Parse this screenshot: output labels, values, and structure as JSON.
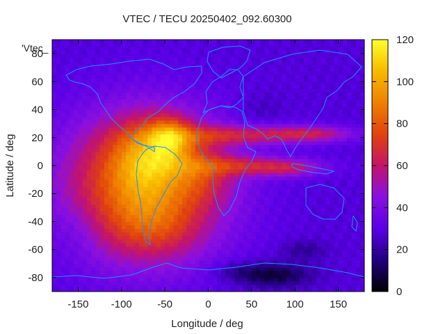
{
  "chart_data": {
    "type": "heatmap",
    "title": "VTEC / TECU 20250402_092.60300",
    "xlabel": "Longitude / deg",
    "ylabel": "Latitude / deg",
    "xlim": [
      -180,
      180
    ],
    "ylim": [
      -90,
      90
    ],
    "x_ticks": [
      -150,
      -100,
      -50,
      0,
      50,
      100,
      150
    ],
    "y_ticks": [
      -80,
      -60,
      -40,
      -20,
      0,
      20,
      40,
      60,
      80
    ],
    "x_tick_labels": [
      "-150",
      "-100",
      "-50",
      "0",
      "50",
      "100",
      "150"
    ],
    "y_tick_labels": [
      "-80",
      "-60",
      "-40",
      "-20",
      "0",
      "20",
      "40",
      "60",
      "80"
    ],
    "colorbar": {
      "min": 0,
      "max": 120,
      "ticks": [
        0,
        20,
        40,
        60,
        80,
        100,
        120
      ],
      "tick_labels": [
        "0",
        "20",
        "40",
        "60",
        "80",
        "100",
        "120"
      ]
    },
    "legend_label": "'Vtec_",
    "background_tec": 28,
    "features": [
      {
        "lon": -75,
        "lat": -15,
        "slon": 65,
        "slat": 36,
        "amp": 60
      },
      {
        "lon": -55,
        "lat": 10,
        "slon": 38,
        "slat": 16,
        "amp": 22
      },
      {
        "lon": -45,
        "lat": 20,
        "slon": 16,
        "slat": 10,
        "amp": 30
      },
      {
        "lon": -75,
        "lat": 0,
        "slon": 22,
        "slat": 22,
        "amp": 12
      },
      {
        "lon": -60,
        "lat": -45,
        "slon": 35,
        "slat": 15,
        "amp": 12
      },
      {
        "lon": 40,
        "lat": 22,
        "slon": 60,
        "slat": 5,
        "amp": 28
      },
      {
        "lon": 120,
        "lat": 23,
        "slon": 35,
        "slat": 4,
        "amp": 25
      },
      {
        "lon": 50,
        "lat": 0,
        "slon": 50,
        "slat": 5,
        "amp": 28
      },
      {
        "lon": 95,
        "lat": -2,
        "slon": 25,
        "slat": 4,
        "amp": 16
      },
      {
        "lon": -5,
        "lat": -10,
        "slon": 25,
        "slat": 12,
        "amp": 10
      },
      {
        "lon": 75,
        "lat": -78,
        "slon": 30,
        "slat": 6,
        "amp": -22
      },
      {
        "lon": 110,
        "lat": -60,
        "slon": 18,
        "slat": 5,
        "amp": -10
      },
      {
        "lon": 30,
        "lat": -75,
        "slon": 20,
        "slat": 5,
        "amp": -8
      },
      {
        "lon": -150,
        "lat": -45,
        "slon": 20,
        "slat": 15,
        "amp": -6
      },
      {
        "lon": 60,
        "lat": 40,
        "slon": 20,
        "slat": 8,
        "amp": -5
      }
    ]
  },
  "colors": {
    "map_border": "#000000",
    "coastline": "#1e90ff"
  }
}
